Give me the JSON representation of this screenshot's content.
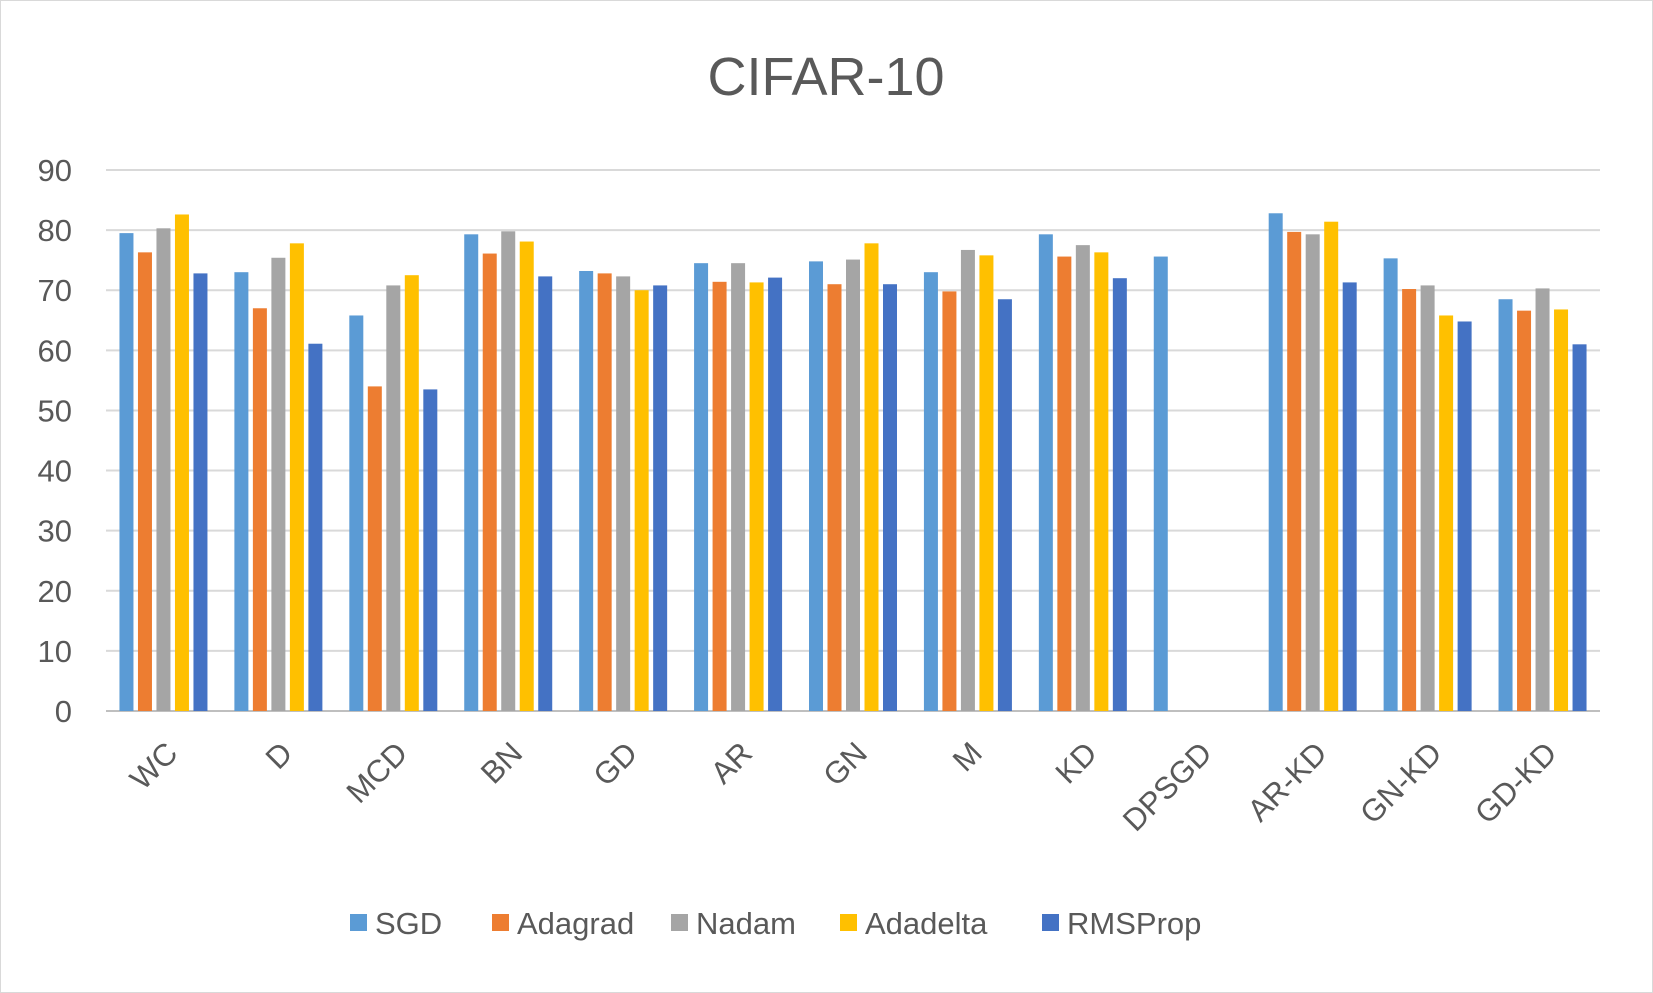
{
  "chart_data": {
    "type": "bar",
    "title": "CIFAR-10",
    "xlabel": "",
    "ylabel": "",
    "ylim": [
      0,
      90
    ],
    "yticks": [
      0,
      10,
      20,
      30,
      40,
      50,
      60,
      70,
      80,
      90
    ],
    "grid": true,
    "legend_position": "bottom",
    "categories": [
      "WC",
      "D",
      "MCD",
      "BN",
      "GD",
      "AR",
      "GN",
      "M",
      "KD",
      "DPSGD",
      "AR-KD",
      "GN-KD",
      "GD-KD"
    ],
    "series": [
      {
        "name": "SGD",
        "color": "#5b9bd5",
        "values": [
          79.5,
          73.0,
          65.8,
          79.3,
          73.2,
          74.5,
          74.8,
          73.0,
          79.3,
          75.6,
          82.8,
          75.3,
          68.5
        ]
      },
      {
        "name": "Adagrad",
        "color": "#ed7d31",
        "values": [
          76.3,
          67.0,
          54.0,
          76.1,
          72.8,
          71.4,
          71.0,
          69.8,
          75.6,
          null,
          79.7,
          70.2,
          66.6
        ]
      },
      {
        "name": "Nadam",
        "color": "#a5a5a5",
        "values": [
          80.3,
          75.4,
          70.8,
          79.8,
          72.3,
          74.5,
          75.1,
          76.7,
          77.5,
          null,
          79.3,
          70.8,
          70.3
        ]
      },
      {
        "name": "Adadelta",
        "color": "#ffc000",
        "values": [
          82.6,
          77.8,
          72.5,
          78.1,
          70.0,
          71.3,
          77.8,
          75.8,
          76.3,
          null,
          81.4,
          65.8,
          66.8
        ]
      },
      {
        "name": "RMSProp",
        "color": "#4472c4",
        "values": [
          72.8,
          61.1,
          53.5,
          72.3,
          70.8,
          72.1,
          71.0,
          68.5,
          72.0,
          null,
          71.3,
          64.8,
          61.0
        ]
      }
    ]
  }
}
